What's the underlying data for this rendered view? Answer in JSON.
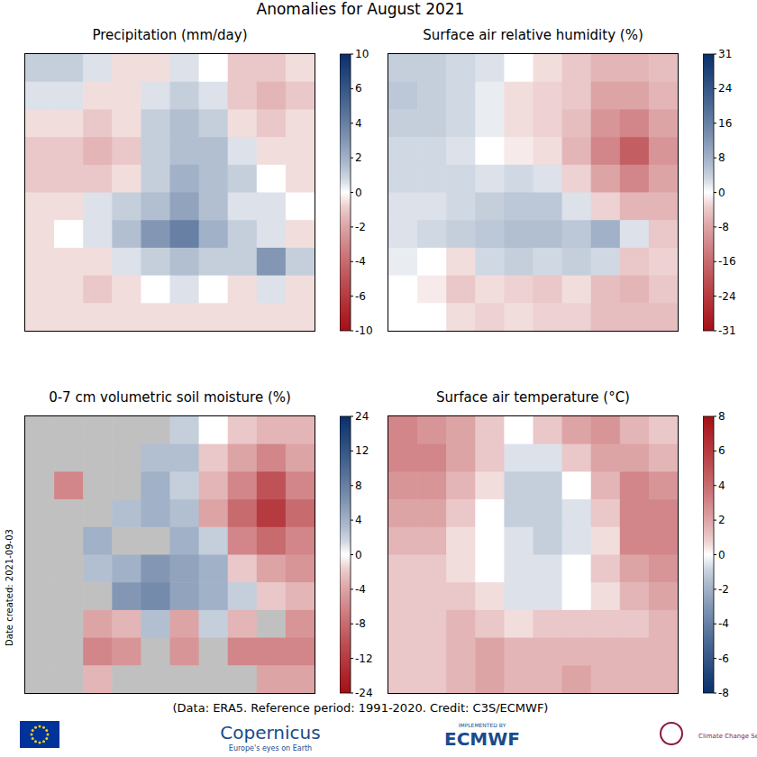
{
  "title": "Anomalies for August 2021",
  "footer": "(Data: ERA5.  Reference period: 1991-2020.  Credit: C3S/ECMWF)",
  "side_note": "Date created: 2021-09-03",
  "logos": {
    "copernicus": "Copernicus",
    "copernicus_sub": "Europe's eyes on Earth",
    "ecmwf_top": "IMPLEMENTED BY",
    "ecmwf": "ECMWF",
    "c3s": "Climate Change Service"
  },
  "chart_data": [
    {
      "type": "heatmap",
      "title": "Precipitation (mm/day)",
      "tick_labels": false,
      "cells": [
        [
          1,
          1,
          0.5,
          -0.5,
          -0.5,
          0.5,
          0,
          -1,
          -1,
          -0.5
        ],
        [
          0.5,
          0.5,
          -0.5,
          -0.5,
          0.5,
          1,
          0.5,
          -1,
          -1.5,
          -1
        ],
        [
          -0.5,
          -0.5,
          -1,
          -0.5,
          1,
          1.5,
          1,
          -0.5,
          -1,
          -0.5
        ],
        [
          -1,
          -1,
          -1.5,
          -1,
          1,
          1.5,
          1.5,
          0.5,
          -0.5,
          -0.5
        ],
        [
          -1,
          -1,
          -1,
          -0.5,
          1,
          2,
          1.5,
          1,
          0,
          -0.5
        ],
        [
          -0.5,
          -0.5,
          0.5,
          1,
          1.5,
          2.5,
          1.5,
          0.5,
          0.5,
          0
        ],
        [
          -0.5,
          0,
          0.5,
          1.5,
          3,
          4,
          2,
          1,
          0.5,
          -0.5
        ],
        [
          -0.5,
          -0.5,
          -0.5,
          0.5,
          1,
          1.5,
          1,
          1,
          3,
          1
        ],
        [
          -0.5,
          -0.5,
          -1,
          -0.5,
          0,
          0.5,
          0,
          -0.5,
          0.5,
          -0.5
        ],
        [
          -0.5,
          -0.5,
          -0.5,
          -0.5,
          -0.5,
          -0.5,
          -0.5,
          -0.5,
          -0.5,
          -0.5
        ]
      ],
      "colorbar": {
        "range": [
          -10,
          10
        ],
        "ticks": [
          -10,
          -6,
          -4,
          -2,
          0,
          2,
          4,
          6,
          10
        ],
        "colors": [
          "#a50f15",
          "#ffffff",
          "#08306b"
        ]
      }
    },
    {
      "type": "heatmap",
      "title": "Surface air relative humidity (%)",
      "tick_labels": false,
      "cells": [
        [
          4,
          4,
          3,
          2,
          0,
          -2,
          -4,
          -6,
          -6,
          -5
        ],
        [
          5,
          4,
          3,
          1,
          -2,
          -3,
          -4,
          -8,
          -8,
          -6
        ],
        [
          4,
          4,
          3,
          1,
          -2,
          -3,
          -5,
          -10,
          -12,
          -8
        ],
        [
          3,
          3,
          2,
          0,
          -1,
          -2,
          -6,
          -12,
          -18,
          -10
        ],
        [
          3,
          3,
          3,
          2,
          3,
          2,
          -3,
          -8,
          -12,
          -8
        ],
        [
          2,
          2,
          3,
          4,
          5,
          5,
          2,
          -3,
          -6,
          -6
        ],
        [
          2,
          3,
          4,
          5,
          6,
          6,
          5,
          8,
          2,
          -4
        ],
        [
          1,
          0,
          -2,
          3,
          4,
          3,
          4,
          3,
          -4,
          -3
        ],
        [
          0,
          -1,
          -4,
          -2,
          -3,
          -4,
          -2,
          -5,
          -6,
          -4
        ],
        [
          0,
          0,
          -2,
          -3,
          -2,
          -3,
          -3,
          -5,
          -5,
          -5
        ]
      ],
      "colorbar": {
        "range": [
          -31,
          31
        ],
        "ticks": [
          -31,
          -24,
          -16,
          -8,
          0,
          8,
          16,
          24,
          31
        ],
        "colors": [
          "#a50f15",
          "#ffffff",
          "#08306b"
        ]
      }
    },
    {
      "type": "heatmap",
      "title": "0-7 cm volumetric soil moisture (%)",
      "tick_labels": false,
      "cells": [
        [
          null,
          null,
          null,
          null,
          null,
          2,
          0,
          -2,
          -3,
          -3
        ],
        [
          null,
          null,
          null,
          null,
          3,
          3,
          -2,
          -4,
          -6,
          -4
        ],
        [
          null,
          -6,
          null,
          null,
          4,
          2,
          -3,
          -6,
          -10,
          -6
        ],
        [
          null,
          null,
          null,
          3,
          4,
          3,
          -4,
          -8,
          -12,
          -8
        ],
        [
          null,
          null,
          4,
          null,
          null,
          4,
          2,
          -6,
          -8,
          -6
        ],
        [
          null,
          null,
          3,
          4,
          6,
          5,
          4,
          -2,
          -4,
          -5
        ],
        [
          null,
          null,
          null,
          6,
          7,
          5,
          4,
          2,
          -2,
          -3
        ],
        [
          null,
          null,
          -4,
          -3,
          3,
          -4,
          2,
          -3,
          null,
          -5
        ],
        [
          null,
          null,
          -6,
          -5,
          null,
          -5,
          null,
          -6,
          -6,
          -6
        ],
        [
          null,
          null,
          -3,
          null,
          null,
          null,
          null,
          null,
          -4,
          -4
        ]
      ],
      "colorbar": {
        "range": [
          -24,
          24
        ],
        "ticks": [
          -24,
          -12,
          -8,
          -4,
          0,
          4,
          8,
          12,
          24
        ],
        "colors": [
          "#a50f15",
          "#ffffff",
          "#08306b"
        ]
      }
    },
    {
      "type": "heatmap",
      "title": "Surface air temperature (°C)",
      "tick_labels": false,
      "cells": [
        [
          3,
          2.5,
          2,
          1,
          0,
          1,
          2,
          2.5,
          1.5,
          1
        ],
        [
          3,
          3,
          2,
          1,
          -0.5,
          -0.5,
          1,
          2,
          2,
          1.5
        ],
        [
          2.5,
          2.5,
          1.5,
          0.5,
          -1,
          -1,
          0,
          1.5,
          3,
          2.5
        ],
        [
          2,
          2,
          1,
          0,
          -1,
          -1,
          -0.5,
          1,
          3,
          3
        ],
        [
          1.5,
          1.5,
          0.5,
          0,
          -0.5,
          -1,
          -0.5,
          0.5,
          3,
          3
        ],
        [
          1,
          1,
          0.5,
          0,
          -0.5,
          -0.5,
          0,
          1,
          2,
          2.5
        ],
        [
          1,
          1,
          1,
          0.5,
          -0.5,
          -0.5,
          0,
          0.5,
          1.5,
          2
        ],
        [
          1,
          1,
          1.5,
          1,
          0.5,
          1,
          1,
          1,
          1,
          1.5
        ],
        [
          1,
          1,
          1.5,
          2,
          1.5,
          1.5,
          1.5,
          1.5,
          1.5,
          1.5
        ],
        [
          1,
          1,
          1.5,
          2,
          1.5,
          1.5,
          2,
          1.5,
          1.5,
          1.5
        ]
      ],
      "colorbar": {
        "range": [
          -8,
          8
        ],
        "ticks": [
          -8,
          -6,
          -4,
          -2,
          0,
          2,
          4,
          6,
          8
        ],
        "colors": [
          "#08306b",
          "#ffffff",
          "#a50f15"
        ]
      }
    }
  ]
}
